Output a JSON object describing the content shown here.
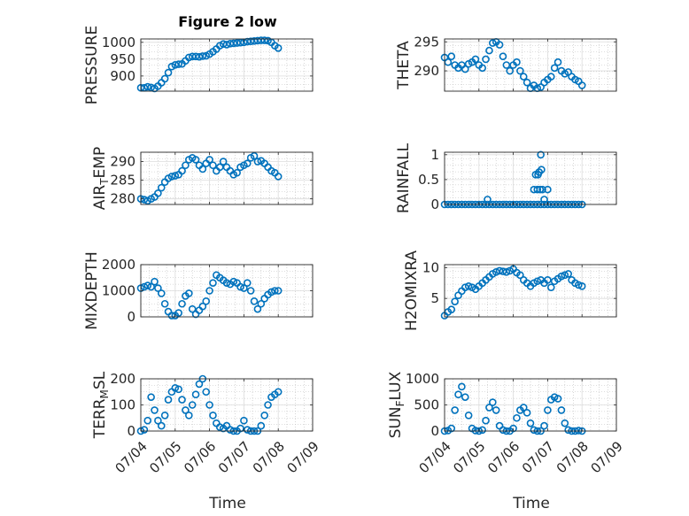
{
  "figure": {
    "title": "Figure 2 low",
    "x_dates": [
      "07/04",
      "07/05",
      "07/06",
      "07/07",
      "07/08",
      "07/09"
    ],
    "xlabel": "Time",
    "marker_color": "#0072BD",
    "grid": "on"
  },
  "chart_data": [
    {
      "type": "scatter",
      "panel": "PRESSURE",
      "title": "Figure 2 low",
      "ylabel": "PRESSURE",
      "ylabel_sub": "",
      "ylabel_suffix": "",
      "xlim": [
        0,
        5
      ],
      "ylim": [
        855,
        1010
      ],
      "yticks": [
        900,
        950,
        1000
      ],
      "ytick_labels": [
        "900",
        "950",
        "1000"
      ],
      "xticks": [
        0,
        1,
        2,
        3,
        4,
        5
      ],
      "xtick_labels": [
        "07/04",
        "07/05",
        "07/06",
        "07/07",
        "07/08",
        "07/09"
      ],
      "show_xticks": false,
      "x": [
        0,
        0.1,
        0.2,
        0.3,
        0.4,
        0.5,
        0.6,
        0.7,
        0.8,
        0.9,
        1.0,
        1.1,
        1.2,
        1.3,
        1.4,
        1.5,
        1.6,
        1.7,
        1.8,
        1.9,
        2.0,
        2.1,
        2.2,
        2.3,
        2.4,
        2.5,
        2.6,
        2.7,
        2.8,
        2.9,
        3.0,
        3.1,
        3.2,
        3.3,
        3.4,
        3.5,
        3.6,
        3.7,
        3.8,
        3.9,
        4.0
      ],
      "y": [
        865,
        865,
        868,
        866,
        863,
        870,
        880,
        892,
        910,
        928,
        933,
        935,
        936,
        945,
        955,
        958,
        958,
        957,
        959,
        960,
        965,
        972,
        980,
        990,
        995,
        993,
        996,
        997,
        998,
        999,
        1000,
        1002,
        1003,
        1004,
        1005,
        1006,
        1006,
        1005,
        1000,
        990,
        983
      ]
    },
    {
      "type": "scatter",
      "panel": "THETA",
      "ylabel": "THETA",
      "ylabel_sub": "",
      "ylabel_suffix": "",
      "xlim": [
        0,
        5
      ],
      "ylim": [
        286.5,
        295.5
      ],
      "yticks": [
        290,
        295
      ],
      "ytick_labels": [
        "290",
        "295"
      ],
      "xticks": [
        0,
        1,
        2,
        3,
        4,
        5
      ],
      "xtick_labels": [
        "07/04",
        "07/05",
        "07/06",
        "07/07",
        "07/08",
        "07/09"
      ],
      "show_xticks": false,
      "x": [
        0,
        0.1,
        0.2,
        0.3,
        0.4,
        0.5,
        0.6,
        0.7,
        0.8,
        0.9,
        1.0,
        1.1,
        1.2,
        1.3,
        1.4,
        1.5,
        1.6,
        1.7,
        1.8,
        1.9,
        2.0,
        2.1,
        2.2,
        2.3,
        2.4,
        2.5,
        2.6,
        2.7,
        2.8,
        2.9,
        3.0,
        3.1,
        3.2,
        3.3,
        3.4,
        3.5,
        3.6,
        3.7,
        3.8,
        3.9,
        4.0
      ],
      "y": [
        292.3,
        291.5,
        292.5,
        291.0,
        290.5,
        291.0,
        290.3,
        291.2,
        291.5,
        292.0,
        291.0,
        290.5,
        292.0,
        293.5,
        294.8,
        295.0,
        294.5,
        292.5,
        291.0,
        290.0,
        291.0,
        291.5,
        290.0,
        289.0,
        288.0,
        287.0,
        287.5,
        287.0,
        287.2,
        288.0,
        288.5,
        289.0,
        290.5,
        291.5,
        290.0,
        289.5,
        289.8,
        289.0,
        288.5,
        288.2,
        287.5
      ]
    },
    {
      "type": "scatter",
      "panel": "AIR_TEMP",
      "ylabel": "AIR",
      "ylabel_sub": "T",
      "ylabel_suffix": "EMP",
      "xlim": [
        0,
        5
      ],
      "ylim": [
        278.5,
        292.5
      ],
      "yticks": [
        280,
        285,
        290
      ],
      "ytick_labels": [
        "280",
        "285",
        "290"
      ],
      "xticks": [
        0,
        1,
        2,
        3,
        4,
        5
      ],
      "xtick_labels": [
        "07/04",
        "07/05",
        "07/06",
        "07/07",
        "07/08",
        "07/09"
      ],
      "show_xticks": false,
      "x": [
        0,
        0.1,
        0.2,
        0.3,
        0.4,
        0.5,
        0.6,
        0.7,
        0.8,
        0.9,
        1.0,
        1.1,
        1.2,
        1.3,
        1.4,
        1.5,
        1.6,
        1.7,
        1.8,
        1.9,
        2.0,
        2.1,
        2.2,
        2.3,
        2.4,
        2.5,
        2.6,
        2.7,
        2.8,
        2.9,
        3.0,
        3.1,
        3.2,
        3.3,
        3.4,
        3.5,
        3.6,
        3.7,
        3.8,
        3.9,
        4.0
      ],
      "y": [
        280.0,
        279.8,
        279.5,
        280.0,
        280.5,
        281.5,
        283.0,
        284.5,
        285.5,
        286.0,
        286.2,
        286.5,
        287.5,
        289.0,
        290.5,
        291.0,
        290.5,
        289.0,
        288.0,
        289.5,
        290.5,
        289.0,
        287.5,
        288.5,
        290.0,
        288.5,
        287.5,
        286.5,
        287.0,
        288.5,
        289.0,
        289.5,
        291.0,
        291.5,
        290.0,
        290.2,
        289.5,
        288.5,
        287.5,
        287.0,
        286.0
      ]
    },
    {
      "type": "scatter",
      "panel": "RAINFALL",
      "ylabel": "RAINFALL",
      "ylabel_sub": "",
      "ylabel_suffix": "",
      "xlim": [
        0,
        5
      ],
      "ylim": [
        0,
        1.05
      ],
      "yticks": [
        0,
        0.5,
        1
      ],
      "ytick_labels": [
        "0",
        "0.5",
        "1"
      ],
      "xticks": [
        0,
        1,
        2,
        3,
        4,
        5
      ],
      "xtick_labels": [
        "07/04",
        "07/05",
        "07/06",
        "07/07",
        "07/08",
        "07/09"
      ],
      "show_xticks": false,
      "x": [
        0,
        0.1,
        0.2,
        0.3,
        0.4,
        0.5,
        0.6,
        0.7,
        0.8,
        0.9,
        1.0,
        1.1,
        1.2,
        1.3,
        1.4,
        1.5,
        1.6,
        1.7,
        1.8,
        1.9,
        2.0,
        2.1,
        2.2,
        2.3,
        2.4,
        2.5,
        2.6,
        2.7,
        2.8,
        2.9,
        3.0,
        3.1,
        3.2,
        3.3,
        3.4,
        3.5,
        3.6,
        3.7,
        3.8,
        3.9,
        4.0,
        1.25,
        2.6,
        2.65,
        2.7,
        2.72,
        2.75,
        2.78,
        2.8,
        2.82,
        2.85,
        2.9,
        3.0
      ],
      "y": [
        0,
        0,
        0,
        0,
        0,
        0,
        0,
        0,
        0,
        0,
        0,
        0,
        0,
        0,
        0,
        0,
        0,
        0,
        0,
        0,
        0,
        0,
        0,
        0,
        0,
        0,
        0,
        0,
        0,
        0,
        0,
        0,
        0,
        0,
        0,
        0,
        0,
        0,
        0,
        0,
        0,
        0.1,
        0.3,
        0.6,
        0.3,
        0.6,
        0.65,
        0.3,
        1.0,
        0.7,
        0.3,
        0.1,
        0.3
      ]
    },
    {
      "type": "scatter",
      "panel": "MIXDEPTH",
      "ylabel": "MIXDEPTH",
      "ylabel_sub": "",
      "ylabel_suffix": "",
      "xlim": [
        0,
        5
      ],
      "ylim": [
        0,
        2000
      ],
      "yticks": [
        0,
        1000,
        2000
      ],
      "ytick_labels": [
        "0",
        "1000",
        "2000"
      ],
      "xticks": [
        0,
        1,
        2,
        3,
        4,
        5
      ],
      "xtick_labels": [
        "07/04",
        "07/05",
        "07/06",
        "07/07",
        "07/08",
        "07/09"
      ],
      "show_xticks": false,
      "x": [
        0,
        0.1,
        0.2,
        0.3,
        0.4,
        0.5,
        0.6,
        0.7,
        0.8,
        0.9,
        1.0,
        1.1,
        1.2,
        1.3,
        1.4,
        1.5,
        1.6,
        1.7,
        1.8,
        1.9,
        2.0,
        2.1,
        2.2,
        2.3,
        2.4,
        2.5,
        2.6,
        2.7,
        2.8,
        2.9,
        3.0,
        3.1,
        3.2,
        3.3,
        3.4,
        3.5,
        3.6,
        3.7,
        3.8,
        3.9,
        4.0
      ],
      "y": [
        1100,
        1150,
        1200,
        1150,
        1350,
        1100,
        900,
        500,
        200,
        50,
        50,
        150,
        500,
        800,
        900,
        300,
        100,
        250,
        400,
        600,
        1000,
        1300,
        1600,
        1500,
        1400,
        1300,
        1250,
        1350,
        1300,
        1150,
        1100,
        1300,
        1000,
        600,
        300,
        500,
        700,
        850,
        950,
        1000,
        1000
      ]
    },
    {
      "type": "scatter",
      "panel": "H2OMIXRA",
      "ylabel": "H2OMIXRA",
      "ylabel_sub": "",
      "ylabel_suffix": "",
      "xlim": [
        0,
        5
      ],
      "ylim": [
        2,
        10.5
      ],
      "yticks": [
        5,
        10
      ],
      "ytick_labels": [
        "5",
        "10"
      ],
      "xticks": [
        0,
        1,
        2,
        3,
        4,
        5
      ],
      "xtick_labels": [
        "07/04",
        "07/05",
        "07/06",
        "07/07",
        "07/08",
        "07/09"
      ],
      "show_xticks": false,
      "x": [
        0,
        0.1,
        0.2,
        0.3,
        0.4,
        0.5,
        0.6,
        0.7,
        0.8,
        0.9,
        1.0,
        1.1,
        1.2,
        1.3,
        1.4,
        1.5,
        1.6,
        1.7,
        1.8,
        1.9,
        2.0,
        2.1,
        2.2,
        2.3,
        2.4,
        2.5,
        2.6,
        2.7,
        2.8,
        2.9,
        3.0,
        3.1,
        3.2,
        3.3,
        3.4,
        3.5,
        3.6,
        3.7,
        3.8,
        3.9,
        4.0
      ],
      "y": [
        2.2,
        2.8,
        3.2,
        4.5,
        5.5,
        6.2,
        6.8,
        7.0,
        6.8,
        6.5,
        7.0,
        7.5,
        8.0,
        8.5,
        9.0,
        9.3,
        9.5,
        9.4,
        9.3,
        9.5,
        9.8,
        9.2,
        8.8,
        8.0,
        7.5,
        7.0,
        7.5,
        7.8,
        8.0,
        7.5,
        8.0,
        6.8,
        7.8,
        8.2,
        8.6,
        8.8,
        9.0,
        8.0,
        7.5,
        7.2,
        7.0
      ]
    },
    {
      "type": "scatter",
      "panel": "TERR_MSL",
      "ylabel": "TERR",
      "ylabel_sub": "M",
      "ylabel_suffix": "SL",
      "xlim": [
        0,
        5
      ],
      "ylim": [
        0,
        200
      ],
      "yticks": [
        0,
        100,
        200
      ],
      "ytick_labels": [
        "0",
        "100",
        "200"
      ],
      "xticks": [
        0,
        1,
        2,
        3,
        4,
        5
      ],
      "xtick_labels": [
        "07/04",
        "07/05",
        "07/06",
        "07/07",
        "07/08",
        "07/09"
      ],
      "show_xticks": true,
      "x": [
        0,
        0.1,
        0.2,
        0.3,
        0.4,
        0.5,
        0.6,
        0.7,
        0.8,
        0.9,
        1.0,
        1.1,
        1.2,
        1.3,
        1.4,
        1.5,
        1.6,
        1.7,
        1.8,
        1.9,
        2.0,
        2.1,
        2.2,
        2.3,
        2.4,
        2.5,
        2.6,
        2.7,
        2.8,
        2.9,
        3.0,
        3.1,
        3.2,
        3.3,
        3.4,
        3.5,
        3.6,
        3.7,
        3.8,
        3.9,
        4.0
      ],
      "y": [
        0,
        5,
        40,
        130,
        80,
        40,
        20,
        60,
        120,
        150,
        165,
        160,
        120,
        80,
        60,
        100,
        140,
        180,
        200,
        150,
        100,
        60,
        30,
        15,
        10,
        20,
        5,
        0,
        0,
        10,
        40,
        5,
        0,
        0,
        0,
        20,
        60,
        100,
        130,
        140,
        150
      ]
    },
    {
      "type": "scatter",
      "panel": "SUN_FLUX",
      "ylabel": "SUN",
      "ylabel_sub": "F",
      "ylabel_suffix": "LUX",
      "xlim": [
        0,
        5
      ],
      "ylim": [
        0,
        1000
      ],
      "yticks": [
        0,
        500,
        1000
      ],
      "ytick_labels": [
        "0",
        "500",
        "1000"
      ],
      "xticks": [
        0,
        1,
        2,
        3,
        4,
        5
      ],
      "xtick_labels": [
        "07/04",
        "07/05",
        "07/06",
        "07/07",
        "07/08",
        "07/09"
      ],
      "show_xticks": true,
      "x": [
        0,
        0.1,
        0.2,
        0.3,
        0.4,
        0.5,
        0.6,
        0.7,
        0.8,
        0.9,
        1.0,
        1.1,
        1.2,
        1.3,
        1.4,
        1.5,
        1.6,
        1.7,
        1.8,
        1.9,
        2.0,
        2.1,
        2.2,
        2.3,
        2.4,
        2.5,
        2.6,
        2.7,
        2.8,
        2.9,
        3.0,
        3.1,
        3.2,
        3.3,
        3.4,
        3.5,
        3.6,
        3.7,
        3.8,
        3.9,
        4.0
      ],
      "y": [
        0,
        10,
        50,
        400,
        700,
        850,
        650,
        300,
        50,
        10,
        0,
        20,
        200,
        450,
        550,
        400,
        100,
        20,
        0,
        0,
        50,
        250,
        400,
        450,
        350,
        150,
        20,
        0,
        0,
        100,
        400,
        600,
        650,
        620,
        400,
        150,
        20,
        0,
        0,
        10,
        0
      ]
    }
  ]
}
